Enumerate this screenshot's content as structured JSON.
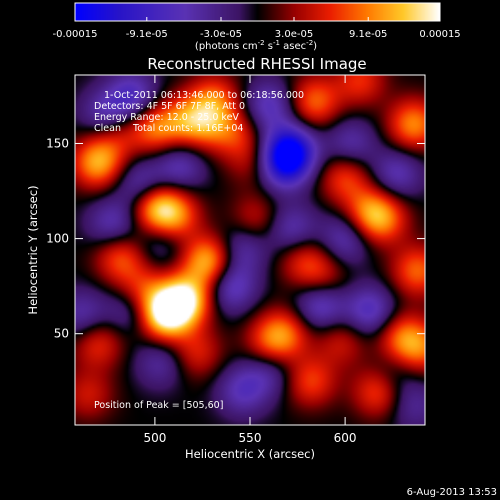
{
  "chart_data": {
    "type": "heatmap",
    "title": "Reconstructed RHESSI Image",
    "annotations": [
      "1-Oct-2011 06:13:46.000 to 06:18:56.000",
      "Detectors: 4F 5F 6F 7F 8F, Att 0",
      "Energy Range: 12.0 - 25.0 keV",
      "Clean    Total counts: 1.16E+04"
    ],
    "peak_text": "Position of Peak = [505,60]",
    "xlabel": "Heliocentric X (arcsec)",
    "ylabel": "Heliocentric Y (arcsec)",
    "xlim": [
      458,
      642
    ],
    "ylim": [
      2,
      186
    ],
    "xticks": [
      500,
      550,
      600
    ],
    "yticks": [
      50,
      100,
      150
    ],
    "colorbar": {
      "label": "(photons cm^-2 s^-1 asec^-2)",
      "range": [
        -0.00015,
        0.00015
      ],
      "ticks": [
        -0.00015,
        -9.1e-05,
        -3e-05,
        3e-05,
        9.1e-05,
        0.00015
      ],
      "ticklabels": [
        "-0.00015",
        "-9.1e-05",
        "-3.0e-05",
        "3.0e-05",
        "9.1e-05",
        "0.00015"
      ]
    },
    "blobs": [
      {
        "x": 470,
        "y": 140,
        "v": 0.8
      },
      {
        "x": 480,
        "y": 155,
        "v": 0.35
      },
      {
        "x": 500,
        "y": 158,
        "v": 0.6
      },
      {
        "x": 516,
        "y": 162,
        "v": 0.5
      },
      {
        "x": 527,
        "y": 160,
        "v": 0.45
      },
      {
        "x": 542,
        "y": 155,
        "v": 0.4
      },
      {
        "x": 531,
        "y": 173,
        "v": 0.55
      },
      {
        "x": 584,
        "y": 172,
        "v": 0.6
      },
      {
        "x": 608,
        "y": 183,
        "v": 0.45
      },
      {
        "x": 636,
        "y": 160,
        "v": 0.7
      },
      {
        "x": 600,
        "y": 132,
        "v": 0.5
      },
      {
        "x": 613,
        "y": 114,
        "v": 0.55
      },
      {
        "x": 620,
        "y": 110,
        "v": 0.5
      },
      {
        "x": 500,
        "y": 117,
        "v": 0.75
      },
      {
        "x": 510,
        "y": 112,
        "v": 0.65
      },
      {
        "x": 482,
        "y": 90,
        "v": 0.55
      },
      {
        "x": 528,
        "y": 88,
        "v": 0.85
      },
      {
        "x": 516,
        "y": 68,
        "v": 1.0
      },
      {
        "x": 505,
        "y": 60,
        "v": 1.1
      },
      {
        "x": 493,
        "y": 72,
        "v": 0.5
      },
      {
        "x": 578,
        "y": 89,
        "v": 0.4
      },
      {
        "x": 588,
        "y": 80,
        "v": 0.35
      },
      {
        "x": 638,
        "y": 83,
        "v": 0.6
      },
      {
        "x": 630,
        "y": 48,
        "v": 0.55
      },
      {
        "x": 640,
        "y": 42,
        "v": 0.5
      },
      {
        "x": 568,
        "y": 50,
        "v": 0.55
      },
      {
        "x": 560,
        "y": 45,
        "v": 0.4
      },
      {
        "x": 598,
        "y": 46,
        "v": 0.35
      },
      {
        "x": 618,
        "y": 20,
        "v": 0.6
      },
      {
        "x": 582,
        "y": 25,
        "v": 0.5
      },
      {
        "x": 522,
        "y": 40,
        "v": 0.4
      },
      {
        "x": 470,
        "y": 45,
        "v": 0.45
      },
      {
        "x": 465,
        "y": 18,
        "v": 0.35
      },
      {
        "x": 552,
        "y": 140,
        "v": 0.3
      },
      {
        "x": 553,
        "y": 110,
        "v": 0.35
      },
      {
        "x": 571,
        "y": 146,
        "v": -1.05
      },
      {
        "x": 567,
        "y": 138,
        "v": -0.6
      },
      {
        "x": 560,
        "y": 170,
        "v": -0.5
      },
      {
        "x": 488,
        "y": 175,
        "v": -0.55
      },
      {
        "x": 513,
        "y": 138,
        "v": -0.45
      },
      {
        "x": 474,
        "y": 165,
        "v": -0.45
      },
      {
        "x": 493,
        "y": 128,
        "v": -0.5
      },
      {
        "x": 478,
        "y": 108,
        "v": -0.45
      },
      {
        "x": 503,
        "y": 98,
        "v": -0.3
      },
      {
        "x": 488,
        "y": 63,
        "v": -0.45
      },
      {
        "x": 503,
        "y": 35,
        "v": -0.35
      },
      {
        "x": 540,
        "y": 75,
        "v": -0.55
      },
      {
        "x": 546,
        "y": 95,
        "v": -0.4
      },
      {
        "x": 572,
        "y": 105,
        "v": -0.45
      },
      {
        "x": 600,
        "y": 100,
        "v": -0.45
      },
      {
        "x": 603,
        "y": 150,
        "v": -0.4
      },
      {
        "x": 613,
        "y": 62,
        "v": -0.55
      },
      {
        "x": 627,
        "y": 134,
        "v": -0.45
      },
      {
        "x": 587,
        "y": 65,
        "v": -0.55
      },
      {
        "x": 546,
        "y": 20,
        "v": -0.45
      },
      {
        "x": 560,
        "y": 30,
        "v": -0.35
      },
      {
        "x": 625,
        "y": 27,
        "v": -0.3
      },
      {
        "x": 636,
        "y": 12,
        "v": -0.3
      },
      {
        "x": 462,
        "y": 60,
        "v": -0.4
      }
    ]
  },
  "footer": {
    "date": "6-Aug-2013 13:53"
  }
}
